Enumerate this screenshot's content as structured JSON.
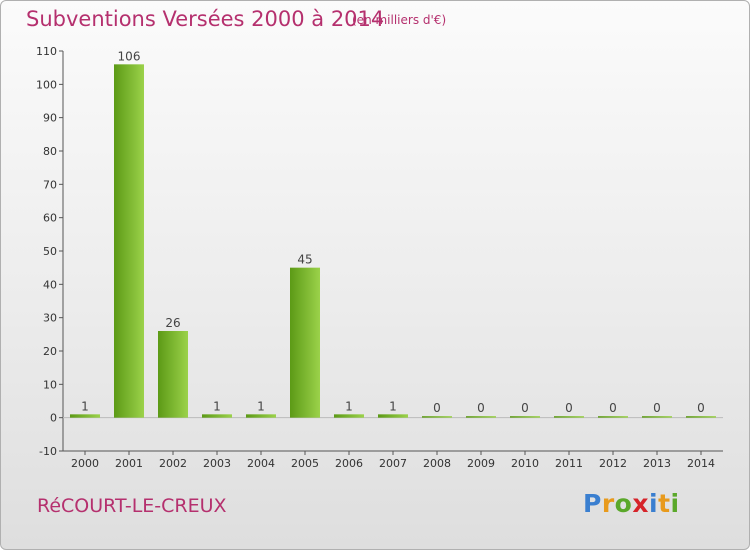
{
  "title": "Subventions Versées 2000 à 2014",
  "subtitle": "(en milliers d'€)",
  "commune": "RéCOURT-LE-CREUX",
  "logo": {
    "letters": [
      "P",
      "r",
      "o",
      "x",
      "i",
      "t",
      "i"
    ],
    "colors": [
      "#3a7fd0",
      "#e89a1c",
      "#5aa82a",
      "#d6242a",
      "#3a7fd0",
      "#e89a1c",
      "#5aa82a"
    ]
  },
  "colors": {
    "accent": "#b5306e",
    "bar_light": "#9bd24a",
    "bar_dark": "#5c9a16",
    "axis": "#555555"
  },
  "chart_data": {
    "type": "bar",
    "categories": [
      "2000",
      "2001",
      "2002",
      "2003",
      "2004",
      "2005",
      "2006",
      "2007",
      "2008",
      "2009",
      "2010",
      "2011",
      "2012",
      "2013",
      "2014"
    ],
    "values": [
      1,
      106,
      26,
      1,
      1,
      45,
      1,
      1,
      0,
      0,
      0,
      0,
      0,
      0,
      0
    ],
    "ylim": [
      -10,
      110
    ],
    "yticks": [
      -10,
      0,
      10,
      20,
      30,
      40,
      50,
      60,
      70,
      80,
      90,
      100,
      110
    ],
    "grid": false,
    "legend": "none"
  }
}
